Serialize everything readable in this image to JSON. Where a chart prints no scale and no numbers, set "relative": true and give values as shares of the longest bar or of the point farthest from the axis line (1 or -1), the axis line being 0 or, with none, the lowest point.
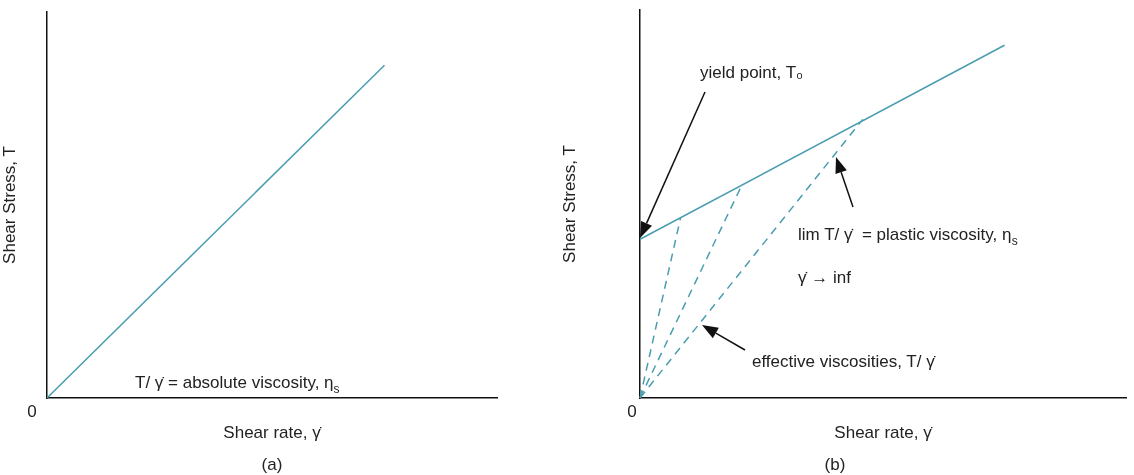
{
  "chart_data": [
    {
      "type": "line",
      "relative": true,
      "xlabel": "Shear rate, γ̇",
      "ylabel": "Shear Stress, T",
      "legend": false,
      "marker": "none",
      "categories": [
        null,
        null,
        null,
        null,
        null
      ],
      "series": [
        {
          "color": "#4a9db0",
          "values": [
            0,
            null,
            null,
            1,
            null
          ],
          "line_style": "solid"
        }
      ],
      "annotations": [
        "T/ γ̇ = absolute viscosity, η$_{s}$",
        "(a)",
        "0"
      ]
    },
    {
      "type": "line",
      "relative": true,
      "xlabel": "Shear rate, γ̇",
      "ylabel": "Shear Stress, T",
      "legend": false,
      "marker": "none",
      "categories": [
        null,
        null,
        null,
        null,
        null,
        null,
        null,
        null,
        null,
        null,
        null,
        null,
        null,
        null,
        null,
        null,
        null,
        null,
        null,
        null,
        null,
        null,
        null,
        null,
        null
      ],
      "series": [
        {
          "color": "#4a9db0",
          "values": [
            0.45,
            null,
            null,
            null,
            null,
            null,
            null,
            null,
            null,
            null,
            null,
            null,
            null,
            null,
            null,
            null,
            null,
            null,
            1,
            null,
            null,
            null,
            null,
            null,
            null
          ],
          "line_style": "solid"
        },
        {
          "color": "#4a9db0",
          "values": [
            0,
            null,
            0.51,
            null,
            null,
            null,
            null,
            null,
            null,
            null,
            null,
            null,
            null,
            null,
            null,
            null,
            null,
            null,
            null,
            null,
            null,
            null,
            null,
            null,
            null
          ],
          "line_style": "dashed"
        },
        {
          "color": "#4a9db0",
          "values": [
            0,
            null,
            null,
            null,
            null,
            0.6,
            null,
            null,
            null,
            null,
            null,
            null,
            null,
            null,
            null,
            null,
            null,
            null,
            null,
            null,
            null,
            null,
            null,
            null,
            null
          ],
          "line_style": "dashed"
        },
        {
          "color": "#4a9db0",
          "values": [
            0,
            null,
            null,
            null,
            null,
            null,
            null,
            null,
            null,
            null,
            null,
            0.79,
            null,
            null,
            null,
            null,
            null,
            null,
            null,
            null,
            null,
            null,
            null,
            null,
            null
          ],
          "line_style": "dashed"
        }
      ],
      "annotations": [
        "yield point, T₀",
        "lim T/ γ̇  = plastic viscosity, η$_{s}$",
        "γ̇ → inf",
        "effective viscosities, T/ γ̇",
        "(b)",
        "0"
      ]
    }
  ]
}
